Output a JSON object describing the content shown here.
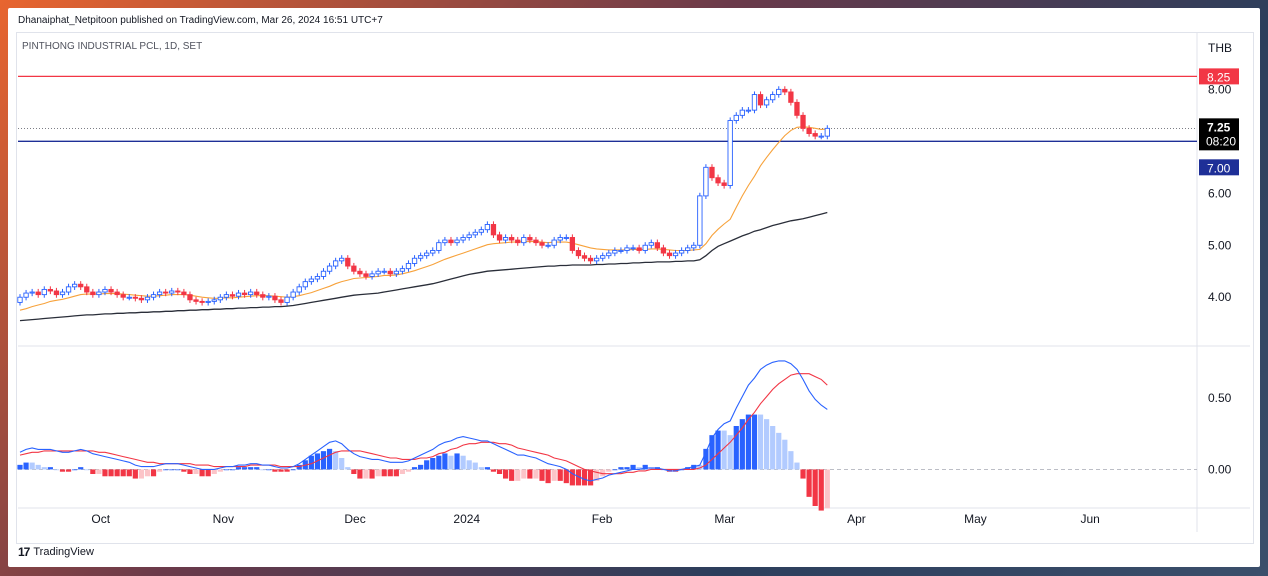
{
  "header": {
    "publisher_line": "Dhanaiphat_Netpitoon published on TradingView.com, Mar 26, 2024 16:51 UTC+7",
    "symbol_line": "PINTHONG INDUSTRIAL PCL, 1D, SET",
    "currency": "THB"
  },
  "footer": {
    "logo_mark": "17",
    "logo_text": "TradingView"
  },
  "colors": {
    "up": "#2962ff",
    "down": "#f23645",
    "ema_fast": "#f7a23b",
    "ema_slow": "#2a2e39",
    "resistance": "#f23645",
    "support": "#1e2f97",
    "macd": "#2962ff",
    "signal": "#f23645"
  },
  "chart_data": {
    "type": "candlestick",
    "x_ticks": [
      "Oct",
      "Nov",
      "Dec",
      "2024",
      "Feb",
      "Mar",
      "Apr",
      "May",
      "Jun"
    ],
    "price_axis": {
      "ticks": [
        "4.00",
        "5.00",
        "6.00",
        "8.00"
      ],
      "ylim": [
        3.1,
        8.95
      ]
    },
    "price_labels": {
      "resistance": "8.25",
      "last": "7.25",
      "countdown": "08:20",
      "support": "7.00"
    },
    "horizontal_lines": {
      "resistance": 8.25,
      "support": 7.0,
      "last_price": 7.25
    },
    "close": [
      4.0,
      4.08,
      4.1,
      4.05,
      4.15,
      4.12,
      4.05,
      4.1,
      4.2,
      4.25,
      4.2,
      4.1,
      4.05,
      4.1,
      4.15,
      4.1,
      4.05,
      4.0,
      4.0,
      3.98,
      3.95,
      4.0,
      4.05,
      4.1,
      4.08,
      4.12,
      4.1,
      4.05,
      3.95,
      3.92,
      3.9,
      3.92,
      3.95,
      4.0,
      4.05,
      4.02,
      4.08,
      4.05,
      4.1,
      4.05,
      4.0,
      4.02,
      3.95,
      3.9,
      4.0,
      4.1,
      4.2,
      4.3,
      4.35,
      4.4,
      4.5,
      4.6,
      4.7,
      4.75,
      4.6,
      4.5,
      4.45,
      4.4,
      4.45,
      4.5,
      4.5,
      4.45,
      4.5,
      4.55,
      4.65,
      4.75,
      4.8,
      4.85,
      4.9,
      5.05,
      5.1,
      5.05,
      5.1,
      5.15,
      5.2,
      5.25,
      5.3,
      5.4,
      5.2,
      5.1,
      5.15,
      5.1,
      5.05,
      5.15,
      5.1,
      5.05,
      5.0,
      5.0,
      5.1,
      5.15,
      5.15,
      4.9,
      4.8,
      4.75,
      4.7,
      4.75,
      4.8,
      4.85,
      4.9,
      4.9,
      4.95,
      4.95,
      4.9,
      5.0,
      5.05,
      4.95,
      4.85,
      4.8,
      4.85,
      4.9,
      4.95,
      5.0,
      5.95,
      6.5,
      6.3,
      6.2,
      6.15,
      7.4,
      7.5,
      7.6,
      7.6,
      7.9,
      7.7,
      7.8,
      7.9,
      8.0,
      7.95,
      7.75,
      7.5,
      7.25,
      7.15,
      7.1,
      7.1,
      7.25
    ],
    "open": [
      3.9,
      4.0,
      4.08,
      4.1,
      4.05,
      4.15,
      4.12,
      4.05,
      4.1,
      4.2,
      4.25,
      4.2,
      4.1,
      4.05,
      4.1,
      4.15,
      4.1,
      4.05,
      4.0,
      4.0,
      3.98,
      3.95,
      4.0,
      4.05,
      4.1,
      4.08,
      4.12,
      4.1,
      4.05,
      3.95,
      3.92,
      3.9,
      3.92,
      3.95,
      4.0,
      4.05,
      4.02,
      4.08,
      4.05,
      4.1,
      4.05,
      4.0,
      4.02,
      3.95,
      3.9,
      4.0,
      4.1,
      4.2,
      4.3,
      4.35,
      4.4,
      4.5,
      4.6,
      4.7,
      4.75,
      4.6,
      4.5,
      4.45,
      4.4,
      4.45,
      4.5,
      4.5,
      4.45,
      4.5,
      4.55,
      4.65,
      4.75,
      4.8,
      4.85,
      4.9,
      5.05,
      5.1,
      5.05,
      5.1,
      5.15,
      5.2,
      5.25,
      5.3,
      5.4,
      5.2,
      5.1,
      5.15,
      5.1,
      5.05,
      5.15,
      5.1,
      5.05,
      5.0,
      5.0,
      5.1,
      5.15,
      5.15,
      4.9,
      4.8,
      4.75,
      4.7,
      4.75,
      4.8,
      4.85,
      4.9,
      4.9,
      4.95,
      4.95,
      4.9,
      5.0,
      5.05,
      4.95,
      4.85,
      4.8,
      4.85,
      4.9,
      4.95,
      5.0,
      5.95,
      6.5,
      6.3,
      6.2,
      6.15,
      7.4,
      7.5,
      7.6,
      7.6,
      7.9,
      7.7,
      7.8,
      7.9,
      8.0,
      7.95,
      7.75,
      7.5,
      7.25,
      7.15,
      7.1,
      7.1
    ],
    "ema_fast": [
      3.75,
      3.78,
      3.82,
      3.85,
      3.88,
      3.92,
      3.94,
      3.96,
      3.99,
      4.02,
      4.05,
      4.06,
      4.06,
      4.06,
      4.07,
      4.07,
      4.07,
      4.06,
      4.05,
      4.04,
      4.03,
      4.02,
      4.02,
      4.03,
      4.04,
      4.05,
      4.05,
      4.05,
      4.04,
      4.02,
      4.0,
      3.99,
      3.98,
      3.98,
      3.99,
      3.99,
      4.0,
      4.01,
      4.02,
      4.03,
      4.03,
      4.03,
      4.02,
      4.01,
      4.0,
      4.01,
      4.03,
      4.06,
      4.09,
      4.13,
      4.17,
      4.21,
      4.26,
      4.3,
      4.33,
      4.36,
      4.37,
      4.38,
      4.39,
      4.4,
      4.42,
      4.42,
      4.43,
      4.45,
      4.48,
      4.51,
      4.55,
      4.59,
      4.63,
      4.68,
      4.73,
      4.77,
      4.81,
      4.85,
      4.89,
      4.93,
      4.97,
      5.01,
      5.03,
      5.04,
      5.05,
      5.06,
      5.06,
      5.07,
      5.07,
      5.07,
      5.06,
      5.05,
      5.06,
      5.06,
      5.06,
      5.04,
      5.01,
      4.98,
      4.95,
      4.93,
      4.92,
      4.91,
      4.91,
      4.91,
      4.91,
      4.92,
      4.92,
      4.92,
      4.93,
      4.93,
      4.92,
      4.91,
      4.9,
      4.9,
      4.9,
      4.91,
      4.92,
      5.03,
      5.19,
      5.31,
      5.41,
      5.5,
      5.73,
      5.95,
      6.15,
      6.33,
      6.53,
      6.69,
      6.84,
      6.98,
      7.11,
      7.21,
      7.27,
      7.28,
      7.27,
      7.25,
      7.23,
      7.24
    ],
    "ema_slow": [
      3.55,
      3.56,
      3.57,
      3.58,
      3.59,
      3.6,
      3.61,
      3.62,
      3.63,
      3.64,
      3.65,
      3.66,
      3.66,
      3.67,
      3.68,
      3.68,
      3.69,
      3.69,
      3.7,
      3.7,
      3.71,
      3.71,
      3.72,
      3.72,
      3.73,
      3.73,
      3.74,
      3.74,
      3.75,
      3.75,
      3.76,
      3.76,
      3.77,
      3.77,
      3.78,
      3.78,
      3.79,
      3.79,
      3.8,
      3.8,
      3.81,
      3.81,
      3.82,
      3.82,
      3.83,
      3.84,
      3.86,
      3.88,
      3.9,
      3.92,
      3.94,
      3.96,
      3.98,
      4.0,
      4.02,
      4.04,
      4.05,
      4.06,
      4.07,
      4.08,
      4.1,
      4.12,
      4.14,
      4.16,
      4.18,
      4.2,
      4.22,
      4.24,
      4.26,
      4.29,
      4.32,
      4.35,
      4.38,
      4.41,
      4.44,
      4.46,
      4.48,
      4.5,
      4.51,
      4.52,
      4.53,
      4.54,
      4.55,
      4.56,
      4.57,
      4.58,
      4.59,
      4.6,
      4.6,
      4.61,
      4.61,
      4.62,
      4.62,
      4.62,
      4.62,
      4.63,
      4.63,
      4.64,
      4.64,
      4.65,
      4.65,
      4.66,
      4.66,
      4.67,
      4.67,
      4.68,
      4.68,
      4.68,
      4.69,
      4.69,
      4.7,
      4.7,
      4.72,
      4.8,
      4.9,
      4.98,
      5.03,
      5.08,
      5.13,
      5.18,
      5.22,
      5.27,
      5.3,
      5.34,
      5.38,
      5.41,
      5.44,
      5.47,
      5.49,
      5.51,
      5.54,
      5.57,
      5.6,
      5.63
    ],
    "macd_axis": {
      "ticks": [
        "0.50",
        "0.00"
      ],
      "ylim": [
        -0.27,
        0.85
      ]
    },
    "macd": [
      0.12,
      0.14,
      0.15,
      0.14,
      0.14,
      0.14,
      0.13,
      0.12,
      0.12,
      0.13,
      0.14,
      0.13,
      0.11,
      0.1,
      0.09,
      0.08,
      0.07,
      0.06,
      0.05,
      0.03,
      0.02,
      0.02,
      0.02,
      0.03,
      0.04,
      0.04,
      0.04,
      0.03,
      0.02,
      0.01,
      0.0,
      0.0,
      0.0,
      0.01,
      0.02,
      0.02,
      0.03,
      0.03,
      0.04,
      0.04,
      0.03,
      0.03,
      0.02,
      0.01,
      0.01,
      0.02,
      0.04,
      0.07,
      0.1,
      0.13,
      0.16,
      0.19,
      0.2,
      0.18,
      0.14,
      0.11,
      0.09,
      0.08,
      0.07,
      0.07,
      0.06,
      0.05,
      0.05,
      0.05,
      0.06,
      0.08,
      0.1,
      0.12,
      0.14,
      0.17,
      0.19,
      0.2,
      0.22,
      0.23,
      0.22,
      0.21,
      0.2,
      0.2,
      0.18,
      0.16,
      0.14,
      0.12,
      0.1,
      0.1,
      0.09,
      0.08,
      0.06,
      0.04,
      0.03,
      0.02,
      0.0,
      -0.03,
      -0.05,
      -0.07,
      -0.08,
      -0.07,
      -0.06,
      -0.04,
      -0.03,
      -0.02,
      -0.01,
      0.0,
      0.0,
      0.01,
      0.01,
      0.01,
      0.0,
      -0.01,
      -0.01,
      0.0,
      0.01,
      0.02,
      0.03,
      0.12,
      0.22,
      0.28,
      0.32,
      0.34,
      0.43,
      0.51,
      0.59,
      0.64,
      0.7,
      0.73,
      0.75,
      0.76,
      0.76,
      0.74,
      0.7,
      0.63,
      0.55,
      0.49,
      0.45,
      0.42
    ],
    "signal": [
      0.1,
      0.11,
      0.12,
      0.12,
      0.13,
      0.13,
      0.13,
      0.13,
      0.13,
      0.13,
      0.13,
      0.13,
      0.13,
      0.12,
      0.12,
      0.11,
      0.1,
      0.09,
      0.08,
      0.07,
      0.06,
      0.05,
      0.05,
      0.04,
      0.04,
      0.04,
      0.04,
      0.04,
      0.04,
      0.03,
      0.03,
      0.03,
      0.02,
      0.02,
      0.02,
      0.02,
      0.02,
      0.02,
      0.03,
      0.03,
      0.03,
      0.03,
      0.03,
      0.02,
      0.02,
      0.02,
      0.02,
      0.03,
      0.04,
      0.06,
      0.08,
      0.1,
      0.12,
      0.13,
      0.13,
      0.13,
      0.13,
      0.12,
      0.11,
      0.1,
      0.09,
      0.08,
      0.08,
      0.07,
      0.07,
      0.07,
      0.08,
      0.08,
      0.09,
      0.11,
      0.12,
      0.14,
      0.15,
      0.17,
      0.18,
      0.18,
      0.19,
      0.19,
      0.19,
      0.18,
      0.18,
      0.17,
      0.15,
      0.14,
      0.13,
      0.12,
      0.11,
      0.1,
      0.08,
      0.07,
      0.06,
      0.04,
      0.02,
      0.0,
      -0.01,
      -0.02,
      -0.03,
      -0.03,
      -0.03,
      -0.03,
      -0.02,
      -0.02,
      -0.01,
      -0.01,
      0.0,
      0.0,
      0.0,
      0.0,
      0.0,
      0.0,
      0.0,
      0.0,
      0.01,
      0.03,
      0.07,
      0.11,
      0.15,
      0.19,
      0.24,
      0.29,
      0.35,
      0.4,
      0.46,
      0.51,
      0.56,
      0.6,
      0.63,
      0.66,
      0.67,
      0.67,
      0.67,
      0.65,
      0.63,
      0.59
    ]
  }
}
